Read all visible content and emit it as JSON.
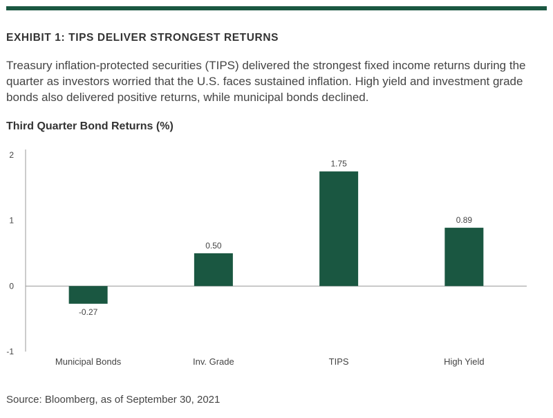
{
  "header": {
    "exhibit_title": "EXHIBIT 1: TIPS DELIVER STRONGEST RETURNS",
    "subtitle": "Treasury inflation-protected securities (TIPS) delivered the strongest fixed income returns during the quarter as investors worried that the U.S. faces sustained inflation. High yield and investment grade bonds also delivered positive returns, while municipal bonds declined.",
    "chart_title": "Third Quarter Bond Returns (%)"
  },
  "footer": {
    "source": "Source: Bloomberg, as of September 30, 2021"
  },
  "colors": {
    "accent": "#1a5741",
    "bar": "#1a5741",
    "axis": "#999999"
  },
  "chart_data": {
    "type": "bar",
    "title": "Third Quarter Bond Returns (%)",
    "xlabel": "",
    "ylabel": "",
    "categories": [
      "Municipal Bonds",
      "Inv. Grade",
      "TIPS",
      "High Yield"
    ],
    "values": [
      -0.27,
      0.5,
      1.75,
      0.89
    ],
    "value_labels": [
      "-0.27",
      "0.50",
      "1.75",
      "0.89"
    ],
    "ylim": [
      -1,
      2
    ],
    "yticks": [
      "2",
      "1",
      "0",
      "-1"
    ],
    "ytick_values": [
      2,
      1,
      0,
      -1
    ],
    "grid": false,
    "legend": "none"
  }
}
